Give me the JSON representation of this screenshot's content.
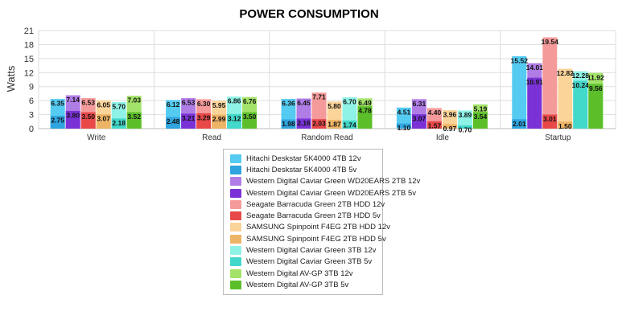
{
  "chart_data": {
    "type": "bar",
    "title": "POWER CONSUMPTION",
    "ylabel": "Watts",
    "xlabel": "",
    "ylim": [
      0,
      21
    ],
    "yticks": [
      0,
      3,
      6,
      9,
      12,
      15,
      18,
      21
    ],
    "grid": true,
    "legend_position": "bottom-center",
    "categories": [
      "Write",
      "Read",
      "Random Read",
      "Idle",
      "Startup"
    ],
    "series": [
      {
        "name": "Hitachi Deskstar 5K4000 4TB 12v",
        "color": "#55cbf2",
        "values": [
          6.35,
          6.12,
          6.36,
          4.51,
          15.52
        ]
      },
      {
        "name": "Hitachi Deskstar 5K4000 4TB 5v",
        "color": "#2fa4df",
        "values": [
          2.75,
          2.48,
          1.98,
          1.1,
          2.01
        ]
      },
      {
        "name": "Western Digital Caviar Green WD20EARS 2TB 12v",
        "color": "#b07ce6",
        "values": [
          7.14,
          6.53,
          6.45,
          6.31,
          14.01
        ]
      },
      {
        "name": "Western Digital Caviar Green WD20EARS 2TB 5v",
        "color": "#7a32d6",
        "values": [
          3.8,
          3.21,
          2.16,
          3.07,
          10.91
        ]
      },
      {
        "name": "Seagate Barracuda Green 2TB HDD 12v",
        "color": "#f59a9a",
        "values": [
          6.53,
          6.3,
          7.71,
          4.4,
          19.54
        ]
      },
      {
        "name": "Seagate Barracuda Green 2TB HDD 5v",
        "color": "#e84848",
        "values": [
          3.5,
          3.29,
          2.03,
          1.57,
          3.01
        ]
      },
      {
        "name": "SAMSUNG Spinpoint F4EG 2TB HDD 12v",
        "color": "#fbd49a",
        "values": [
          6.05,
          5.95,
          5.8,
          3.96,
          12.82
        ]
      },
      {
        "name": "SAMSUNG Spinpoint F4EG 2TB HDD 5v",
        "color": "#eeb466",
        "values": [
          3.07,
          2.99,
          1.87,
          0.97,
          1.5
        ]
      },
      {
        "name": "Western Digital Caviar Green 3TB 12v",
        "color": "#8ef2e6",
        "values": [
          5.7,
          6.86,
          6.7,
          3.89,
          12.28
        ]
      },
      {
        "name": "Western Digital Caviar Green 3TB 5v",
        "color": "#42d8ca",
        "values": [
          2.18,
          3.12,
          1.74,
          0.7,
          10.24
        ]
      },
      {
        "name": "Western Digital AV-GP 3TB 12v",
        "color": "#a3e36a",
        "values": [
          7.03,
          6.76,
          6.49,
          5.19,
          11.92
        ]
      },
      {
        "name": "Western Digital AV-GP 3TB 5v",
        "color": "#5cbf2a",
        "values": [
          3.52,
          3.5,
          4.78,
          3.54,
          9.56
        ]
      }
    ]
  }
}
